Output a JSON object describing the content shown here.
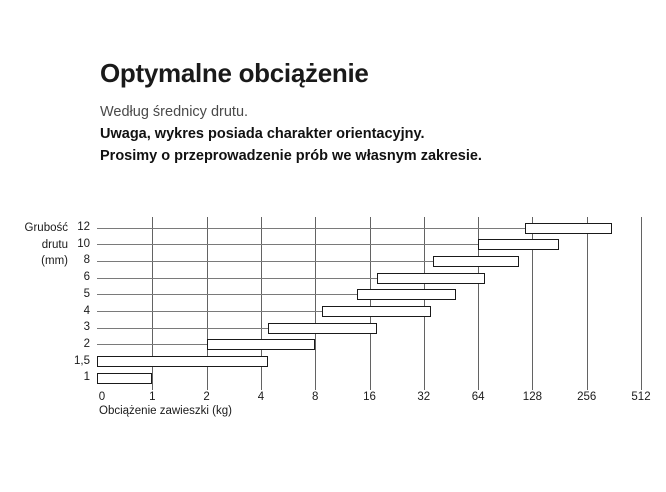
{
  "page": {
    "title": "Optymalne obciążenie",
    "subtitle": "Według średnicy drutu.",
    "warning_line1": "Uwaga, wykres posiada charakter orientacyjny.",
    "warning_line2": "Prosimy o przeprowadzenie prób we własnym zakresie."
  },
  "colors": {
    "background": "#ffffff",
    "text": "#1a1a1a",
    "muted_text": "#4a4a4a",
    "gridline": "#6a6a6a",
    "bar_border": "#1a1a1a",
    "bar_fill": "#ffffff"
  },
  "chart_data": {
    "type": "bar",
    "orientation": "horizontal",
    "x_scale": "log2",
    "grid": true,
    "ylabel_lines": [
      "Grubość",
      "drutu",
      "(mm)"
    ],
    "xlabel": "Obciążenie zawieszki (kg)",
    "x_ticks": [
      0,
      1,
      2,
      4,
      8,
      16,
      32,
      64,
      128,
      256,
      512
    ],
    "x_range": [
      0,
      512
    ],
    "categories": [
      "12",
      "10",
      "8",
      "6",
      "5",
      "4",
      "3",
      "2",
      "1,5",
      "1"
    ],
    "bars": [
      {
        "thickness_mm": "12",
        "from_kg": 117,
        "to_kg": 355
      },
      {
        "thickness_mm": "10",
        "from_kg": 64,
        "to_kg": 180
      },
      {
        "thickness_mm": "8",
        "from_kg": 36,
        "to_kg": 108
      },
      {
        "thickness_mm": "6",
        "from_kg": 17.6,
        "to_kg": 70
      },
      {
        "thickness_mm": "5",
        "from_kg": 13.7,
        "to_kg": 48.5
      },
      {
        "thickness_mm": "4",
        "from_kg": 8.7,
        "to_kg": 35
      },
      {
        "thickness_mm": "3",
        "from_kg": 4.4,
        "to_kg": 17.6
      },
      {
        "thickness_mm": "2",
        "from_kg": 2,
        "to_kg": 8
      },
      {
        "thickness_mm": "1,5",
        "from_kg": 0,
        "to_kg": 4.4
      },
      {
        "thickness_mm": "1",
        "from_kg": 0,
        "to_kg": 1
      }
    ]
  }
}
